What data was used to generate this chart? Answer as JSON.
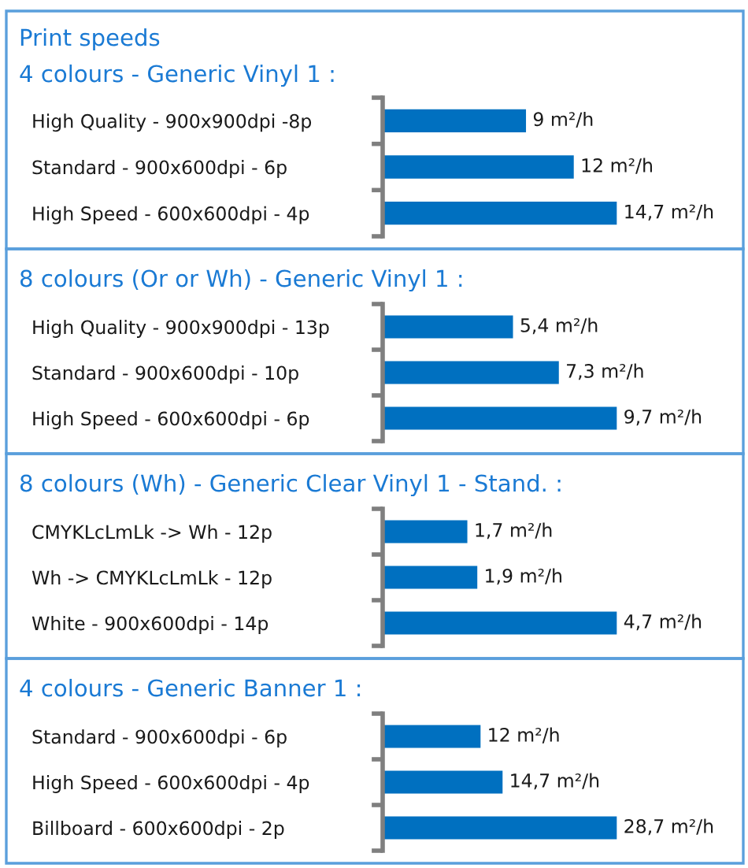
{
  "chart_data": [
    {
      "type": "bar",
      "orientation": "horizontal",
      "title": "Print speeds",
      "subtitle": "4 colours - Generic Vinyl 1 :",
      "categories": [
        "High Quality - 900x900dpi -8p",
        "Standard - 900x600dpi - 6p",
        "High Speed - 600x600dpi - 4p"
      ],
      "values": [
        9,
        12,
        14.7
      ],
      "value_labels": [
        "9 m²/h",
        "12 m²/h",
        "14,7 m²/h"
      ],
      "color": "#0070c0",
      "tick_labels": "y"
    },
    {
      "type": "bar",
      "orientation": "horizontal",
      "title": "8 colours (Or or Wh) - Generic Vinyl 1 :",
      "categories": [
        "High Quality - 900x900dpi - 13p",
        "Standard - 900x600dpi - 10p",
        "High Speed - 600x600dpi - 6p"
      ],
      "values": [
        5.4,
        7.3,
        9.7
      ],
      "value_labels": [
        "5,4 m²/h",
        "7,3 m²/h",
        "9,7 m²/h"
      ],
      "color": "#0070c0",
      "tick_labels": "y"
    },
    {
      "type": "bar",
      "orientation": "horizontal",
      "title": "8 colours (Wh) - Generic Clear Vinyl 1 - Stand. :",
      "categories": [
        "CMYKLcLmLk -> Wh - 12p",
        "Wh -> CMYKLcLmLk - 12p",
        "White - 900x600dpi - 14p"
      ],
      "values": [
        1.7,
        1.9,
        4.7
      ],
      "value_labels": [
        "1,7 m²/h",
        "1,9 m²/h",
        "4,7 m²/h"
      ],
      "color": "#0070c0",
      "tick_labels": "y"
    },
    {
      "type": "bar",
      "orientation": "horizontal",
      "title": "4 colours - Generic Banner 1 :",
      "categories": [
        "Standard - 900x600dpi - 6p",
        "High Speed - 600x600dpi - 4p",
        "Billboard - 600x600dpi - 2p"
      ],
      "values": [
        12,
        14.7,
        28.7
      ],
      "value_labels": [
        "12 m²/h",
        "14,7 m²/h",
        "28,7 m²/h"
      ],
      "color": "#0070c0",
      "tick_labels": "y"
    }
  ]
}
